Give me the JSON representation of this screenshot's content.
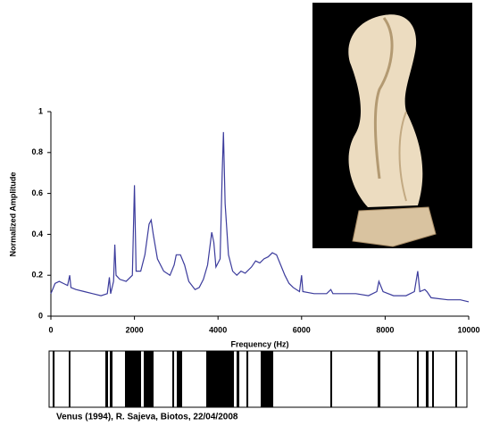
{
  "chart_data": {
    "type": "line",
    "x_label": "Frequency (Hz)",
    "y_label": "Normalized Amplitude",
    "color": "#3b3b9c",
    "xlim": [
      0,
      10000
    ],
    "xticks": [
      0,
      2000,
      4000,
      6000,
      8000,
      10000
    ],
    "ylim": [
      0,
      1
    ],
    "yticks": [
      0,
      0.2,
      0.4,
      0.6,
      0.8,
      1
    ],
    "grid": false,
    "x": [
      0,
      100,
      200,
      300,
      400,
      450,
      480,
      600,
      800,
      1000,
      1200,
      1350,
      1400,
      1430,
      1500,
      1530,
      1560,
      1650,
      1800,
      1950,
      2000,
      2040,
      2150,
      2250,
      2350,
      2400,
      2450,
      2550,
      2700,
      2850,
      2950,
      3000,
      3100,
      3200,
      3300,
      3450,
      3550,
      3650,
      3750,
      3850,
      3900,
      3950,
      4050,
      4100,
      4130,
      4170,
      4250,
      4350,
      4450,
      4550,
      4650,
      4800,
      4900,
      5000,
      5100,
      5200,
      5300,
      5400,
      5500,
      5600,
      5700,
      5800,
      5950,
      6000,
      6030,
      6300,
      6600,
      6700,
      6750,
      7000,
      7300,
      7600,
      7800,
      7850,
      7950,
      8200,
      8500,
      8700,
      8780,
      8830,
      8950,
      9000,
      9100,
      9500,
      9800,
      10000
    ],
    "values": [
      0.11,
      0.16,
      0.17,
      0.16,
      0.15,
      0.2,
      0.14,
      0.13,
      0.12,
      0.11,
      0.1,
      0.11,
      0.19,
      0.11,
      0.17,
      0.35,
      0.2,
      0.18,
      0.17,
      0.2,
      0.64,
      0.22,
      0.22,
      0.3,
      0.45,
      0.47,
      0.4,
      0.28,
      0.22,
      0.2,
      0.25,
      0.3,
      0.3,
      0.25,
      0.17,
      0.13,
      0.14,
      0.18,
      0.25,
      0.41,
      0.36,
      0.24,
      0.28,
      0.7,
      0.9,
      0.55,
      0.3,
      0.22,
      0.2,
      0.22,
      0.21,
      0.24,
      0.27,
      0.26,
      0.28,
      0.29,
      0.31,
      0.3,
      0.25,
      0.2,
      0.16,
      0.14,
      0.12,
      0.2,
      0.12,
      0.11,
      0.11,
      0.13,
      0.11,
      0.11,
      0.11,
      0.1,
      0.12,
      0.17,
      0.12,
      0.1,
      0.1,
      0.12,
      0.22,
      0.12,
      0.13,
      0.12,
      0.09,
      0.08,
      0.08,
      0.07
    ],
    "barcode": {
      "caption": "Venus (1994), R. Sajeva, Biotos, 22/04/2008",
      "bands": [
        [
          85,
          130
        ],
        [
          470,
          510
        ],
        [
          1346,
          1410
        ],
        [
          1453,
          1517
        ],
        [
          1816,
          2201
        ],
        [
          2265,
          2500
        ],
        [
          2949,
          2992
        ],
        [
          3056,
          3184
        ],
        [
          3761,
          4424
        ],
        [
          4488,
          4552
        ],
        [
          4723,
          4766
        ],
        [
          5065,
          5364
        ],
        [
          6731,
          6774
        ],
        [
          7864,
          7928
        ],
        [
          8804,
          8846
        ],
        [
          9017,
          9081
        ],
        [
          9167,
          9210
        ],
        [
          9722,
          9765
        ]
      ]
    }
  }
}
